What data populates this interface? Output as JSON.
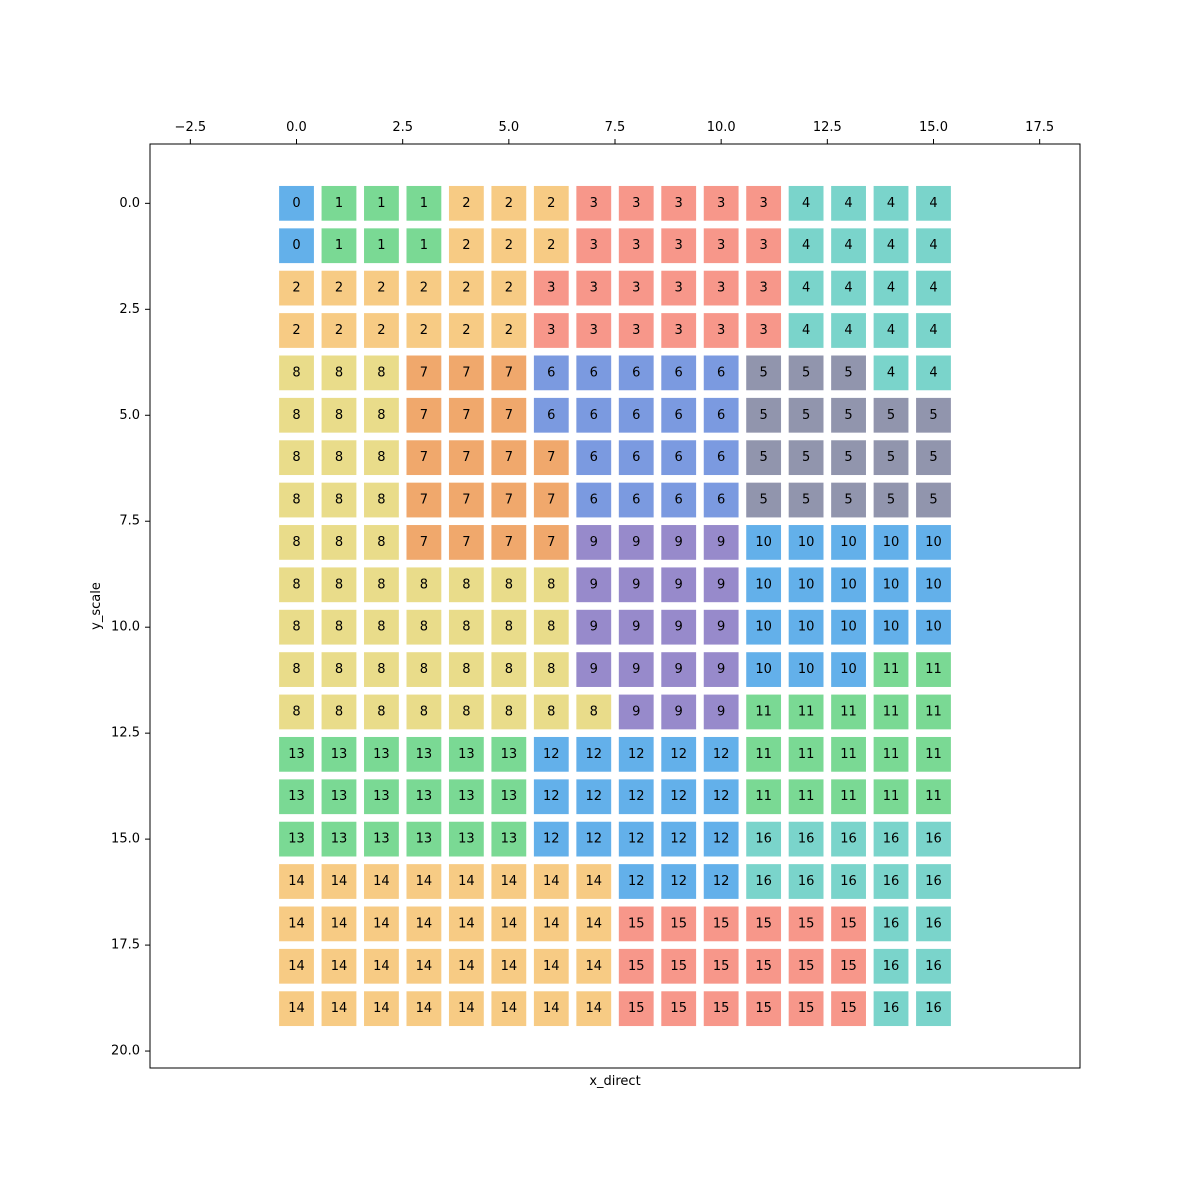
{
  "chart_data": {
    "type": "heatmap",
    "title": "",
    "xlabel": "x_direct",
    "ylabel": "y_scale",
    "xlim": [
      -3.45,
      18.45
    ],
    "ylim": [
      20.4,
      -1.4
    ],
    "y_inverted": true,
    "x_axis_position": "top",
    "grid": false,
    "legend": "none",
    "x_ticks": [
      -2.5,
      0.0,
      2.5,
      5.0,
      7.5,
      10.0,
      12.5,
      15.0,
      17.5
    ],
    "x_tick_labels": [
      "−2.5",
      "0.0",
      "2.5",
      "5.0",
      "7.5",
      "10.0",
      "12.5",
      "15.0",
      "17.5"
    ],
    "y_ticks": [
      0.0,
      2.5,
      5.0,
      7.5,
      10.0,
      12.5,
      15.0,
      17.5,
      20.0
    ],
    "y_tick_labels": [
      "0.0",
      "2.5",
      "5.0",
      "7.5",
      "10.0",
      "12.5",
      "15.0",
      "17.5",
      "20.0"
    ],
    "grid_values": [
      [
        0,
        1,
        1,
        1,
        2,
        2,
        2,
        3,
        3,
        3,
        3,
        3,
        4,
        4,
        4,
        4
      ],
      [
        0,
        1,
        1,
        1,
        2,
        2,
        2,
        3,
        3,
        3,
        3,
        3,
        4,
        4,
        4,
        4
      ],
      [
        2,
        2,
        2,
        2,
        2,
        2,
        3,
        3,
        3,
        3,
        3,
        3,
        4,
        4,
        4,
        4
      ],
      [
        2,
        2,
        2,
        2,
        2,
        2,
        3,
        3,
        3,
        3,
        3,
        3,
        4,
        4,
        4,
        4
      ],
      [
        8,
        8,
        8,
        7,
        7,
        7,
        6,
        6,
        6,
        6,
        6,
        5,
        5,
        5,
        4,
        4
      ],
      [
        8,
        8,
        8,
        7,
        7,
        7,
        6,
        6,
        6,
        6,
        6,
        5,
        5,
        5,
        5,
        5
      ],
      [
        8,
        8,
        8,
        7,
        7,
        7,
        7,
        6,
        6,
        6,
        6,
        5,
        5,
        5,
        5,
        5
      ],
      [
        8,
        8,
        8,
        7,
        7,
        7,
        7,
        6,
        6,
        6,
        6,
        5,
        5,
        5,
        5,
        5
      ],
      [
        8,
        8,
        8,
        7,
        7,
        7,
        7,
        9,
        9,
        9,
        9,
        10,
        10,
        10,
        10,
        10
      ],
      [
        8,
        8,
        8,
        8,
        8,
        8,
        8,
        9,
        9,
        9,
        9,
        10,
        10,
        10,
        10,
        10
      ],
      [
        8,
        8,
        8,
        8,
        8,
        8,
        8,
        9,
        9,
        9,
        9,
        10,
        10,
        10,
        10,
        10
      ],
      [
        8,
        8,
        8,
        8,
        8,
        8,
        8,
        9,
        9,
        9,
        9,
        10,
        10,
        10,
        11,
        11
      ],
      [
        8,
        8,
        8,
        8,
        8,
        8,
        8,
        8,
        9,
        9,
        9,
        11,
        11,
        11,
        11,
        11
      ],
      [
        13,
        13,
        13,
        13,
        13,
        13,
        12,
        12,
        12,
        12,
        12,
        11,
        11,
        11,
        11,
        11
      ],
      [
        13,
        13,
        13,
        13,
        13,
        13,
        12,
        12,
        12,
        12,
        12,
        11,
        11,
        11,
        11,
        11
      ],
      [
        13,
        13,
        13,
        13,
        13,
        13,
        12,
        12,
        12,
        12,
        12,
        16,
        16,
        16,
        16,
        16
      ],
      [
        14,
        14,
        14,
        14,
        14,
        14,
        14,
        14,
        12,
        12,
        12,
        16,
        16,
        16,
        16,
        16
      ],
      [
        14,
        14,
        14,
        14,
        14,
        14,
        14,
        14,
        15,
        15,
        15,
        15,
        15,
        15,
        16,
        16
      ],
      [
        14,
        14,
        14,
        14,
        14,
        14,
        14,
        14,
        15,
        15,
        15,
        15,
        15,
        15,
        16,
        16
      ],
      [
        14,
        14,
        14,
        14,
        14,
        14,
        14,
        14,
        15,
        15,
        15,
        15,
        15,
        15,
        16,
        16
      ]
    ],
    "colors": {
      "0": "#63b0ea",
      "1": "#7ad994",
      "2": "#f7cb84",
      "3": "#f7978a",
      "4": "#7ad4cb",
      "5": "#9195ad",
      "6": "#7b9ae0",
      "7": "#f0a86c",
      "8": "#e9dc8a",
      "9": "#978acb",
      "10": "#63b0ea",
      "11": "#7ad994",
      "12": "#63b0ea",
      "13": "#7ad994",
      "14": "#f7cb84",
      "15": "#f7978a",
      "16": "#7ad4cb"
    }
  }
}
